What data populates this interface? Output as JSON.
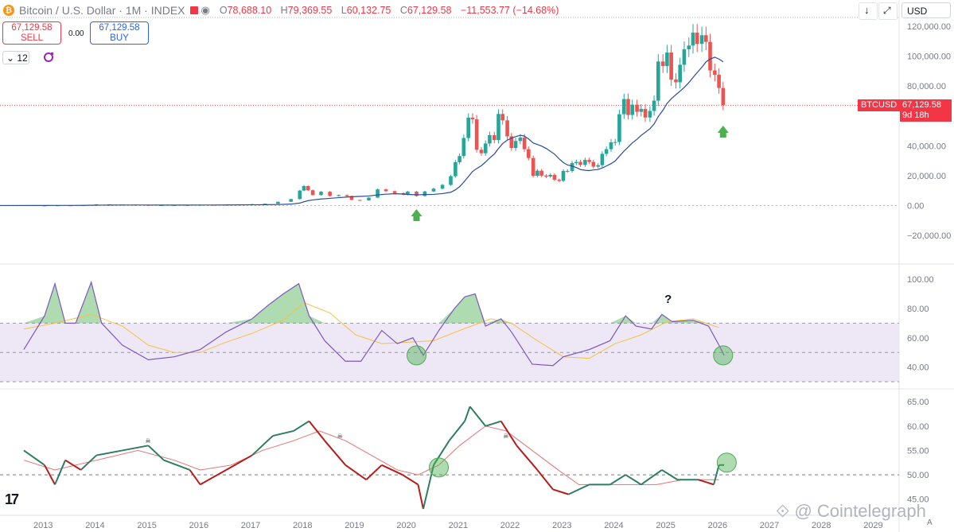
{
  "header": {
    "symbol": "Bitcoin / U.S. Dollar · 1M · INDEX",
    "open_label": "O",
    "open": "78,688.10",
    "high_label": "H",
    "high": "79,369.55",
    "low_label": "L",
    "low": "60,132.75",
    "close_label": "C",
    "close": "67,129.58",
    "change": "−11,553.77 (−14.68%)"
  },
  "trade": {
    "sell_price": "67,129.58",
    "sell_label": "SELL",
    "spread": "0.00",
    "buy_price": "67,129.58",
    "buy_label": "BUY"
  },
  "interval_value": "12",
  "currency": "USD",
  "last_price": {
    "ticker": "BTCUSD",
    "price": "67,129.58",
    "countdown": "9d 18h"
  },
  "watermark": "Cointelegraph",
  "tv_logo": "17",
  "auto_label": "A",
  "colors": {
    "up": "#26a69a",
    "down": "#ef5350",
    "ma": "#2a4b9b",
    "rsi": "#7e57c2",
    "rsi_ma": "#f5c243",
    "osc": "#2e7d63",
    "osc_sig": "#e57373",
    "arrow": "#4caf50",
    "bands": "#ede7f6"
  },
  "chart_data": [
    {
      "type": "candlestick",
      "x_labels": [
        "2013",
        "2014",
        "2015",
        "2016",
        "2017",
        "2018",
        "2019",
        "2020",
        "2021",
        "2022",
        "2023",
        "2024",
        "2025",
        "2026",
        "2027",
        "2028",
        "2029"
      ],
      "y_ticks": [
        "120,000.00",
        "100,000.00",
        "80,000.00",
        "40,000.00",
        "20,000.00",
        "0.00",
        "−20,000.00"
      ],
      "ylim": [
        -20000,
        120000
      ],
      "candles": [
        [
          2013.0,
          10
        ],
        [
          2013.25,
          100
        ],
        [
          2013.5,
          90
        ],
        [
          2013.75,
          200
        ],
        [
          2014.0,
          800
        ],
        [
          2014.25,
          450
        ],
        [
          2014.5,
          600
        ],
        [
          2014.75,
          380
        ],
        [
          2015.0,
          220
        ],
        [
          2015.25,
          240
        ],
        [
          2015.5,
          280
        ],
        [
          2015.75,
          310
        ],
        [
          2016.0,
          430
        ],
        [
          2016.25,
          420
        ],
        [
          2016.5,
          650
        ],
        [
          2016.75,
          700
        ],
        [
          2017.0,
          960
        ],
        [
          2017.25,
          1200
        ],
        [
          2017.5,
          2500
        ],
        [
          2017.75,
          4300
        ],
        [
          2017.92,
          10000
        ],
        [
          2018.0,
          13000
        ],
        [
          2018.08,
          10200
        ],
        [
          2018.17,
          7000
        ],
        [
          2018.33,
          9200
        ],
        [
          2018.5,
          6400
        ],
        [
          2018.67,
          7000
        ],
        [
          2018.83,
          6300
        ],
        [
          2018.92,
          3700
        ],
        [
          2019.08,
          3400
        ],
        [
          2019.25,
          5300
        ],
        [
          2019.42,
          10800
        ],
        [
          2019.58,
          9600
        ],
        [
          2019.75,
          8300
        ],
        [
          2019.92,
          7200
        ],
        [
          2020.0,
          9300
        ],
        [
          2020.17,
          6400
        ],
        [
          2020.33,
          9400
        ],
        [
          2020.5,
          11300
        ],
        [
          2020.67,
          13800
        ],
        [
          2020.83,
          19600
        ],
        [
          2020.92,
          29000
        ],
        [
          2021.0,
          33100
        ],
        [
          2021.08,
          45200
        ],
        [
          2021.17,
          58800
        ],
        [
          2021.25,
          57700
        ],
        [
          2021.33,
          37300
        ],
        [
          2021.42,
          35000
        ],
        [
          2021.5,
          41500
        ],
        [
          2021.58,
          47100
        ],
        [
          2021.67,
          43800
        ],
        [
          2021.75,
          61300
        ],
        [
          2021.83,
          57000
        ],
        [
          2021.92,
          46300
        ],
        [
          2022.0,
          38500
        ],
        [
          2022.08,
          43200
        ],
        [
          2022.17,
          45500
        ],
        [
          2022.25,
          37700
        ],
        [
          2022.33,
          31800
        ],
        [
          2022.42,
          19900
        ],
        [
          2022.5,
          23300
        ],
        [
          2022.58,
          20000
        ],
        [
          2022.67,
          19400
        ],
        [
          2022.75,
          20500
        ],
        [
          2022.83,
          17200
        ],
        [
          2022.92,
          16500
        ],
        [
          2023.0,
          23100
        ],
        [
          2023.08,
          23100
        ],
        [
          2023.17,
          28400
        ],
        [
          2023.25,
          29200
        ],
        [
          2023.33,
          27200
        ],
        [
          2023.42,
          30500
        ],
        [
          2023.5,
          29200
        ],
        [
          2023.58,
          26000
        ],
        [
          2023.67,
          27000
        ],
        [
          2023.75,
          34600
        ],
        [
          2023.83,
          37700
        ],
        [
          2023.92,
          42300
        ],
        [
          2024.0,
          42500
        ],
        [
          2024.08,
          61100
        ],
        [
          2024.17,
          71300
        ],
        [
          2024.25,
          60600
        ],
        [
          2024.33,
          67500
        ],
        [
          2024.42,
          62700
        ],
        [
          2024.5,
          64600
        ],
        [
          2024.58,
          58900
        ],
        [
          2024.67,
          63300
        ],
        [
          2024.75,
          70200
        ],
        [
          2024.83,
          96400
        ],
        [
          2024.92,
          93400
        ],
        [
          2025.0,
          102400
        ],
        [
          2025.08,
          84300
        ],
        [
          2025.17,
          82500
        ],
        [
          2025.25,
          94200
        ],
        [
          2025.33,
          104600
        ],
        [
          2025.42,
          107100
        ],
        [
          2025.5,
          115700
        ],
        [
          2025.58,
          108200
        ],
        [
          2025.67,
          114000
        ],
        [
          2025.75,
          109500
        ],
        [
          2025.83,
          90400
        ],
        [
          2025.92,
          87500
        ],
        [
          2026.0,
          78700
        ],
        [
          2026.08,
          67100
        ]
      ]
    },
    {
      "type": "line",
      "y_ticks": [
        "100.00",
        "80.00",
        "60.00",
        "40.00"
      ],
      "ylim": [
        30,
        105
      ],
      "bands": [
        30,
        70
      ],
      "midline": 50,
      "annotation": "?",
      "rsi": [
        [
          2012.6,
          52
        ],
        [
          2013.0,
          75
        ],
        [
          2013.2,
          97
        ],
        [
          2013.4,
          70
        ],
        [
          2013.6,
          70
        ],
        [
          2013.9,
          98
        ],
        [
          2014.1,
          70
        ],
        [
          2014.5,
          55
        ],
        [
          2015.0,
          45
        ],
        [
          2015.5,
          47
        ],
        [
          2016.0,
          52
        ],
        [
          2016.5,
          64
        ],
        [
          2017.0,
          73
        ],
        [
          2017.3,
          82
        ],
        [
          2017.6,
          90
        ],
        [
          2017.9,
          97
        ],
        [
          2018.1,
          75
        ],
        [
          2018.4,
          58
        ],
        [
          2018.8,
          44
        ],
        [
          2019.1,
          44
        ],
        [
          2019.5,
          65
        ],
        [
          2019.8,
          56
        ],
        [
          2020.1,
          60
        ],
        [
          2020.3,
          48
        ],
        [
          2020.6,
          65
        ],
        [
          2020.9,
          80
        ],
        [
          2021.1,
          88
        ],
        [
          2021.3,
          90
        ],
        [
          2021.5,
          68
        ],
        [
          2021.8,
          73
        ],
        [
          2022.0,
          64
        ],
        [
          2022.4,
          42
        ],
        [
          2022.8,
          41
        ],
        [
          2023.0,
          47
        ],
        [
          2023.5,
          52
        ],
        [
          2023.9,
          58
        ],
        [
          2024.2,
          75
        ],
        [
          2024.4,
          68
        ],
        [
          2024.7,
          66
        ],
        [
          2024.9,
          76
        ],
        [
          2025.1,
          71
        ],
        [
          2025.5,
          72
        ],
        [
          2025.8,
          68
        ],
        [
          2026.0,
          55
        ],
        [
          2026.1,
          48
        ]
      ],
      "rsi_ma": [
        [
          2012.6,
          66
        ],
        [
          2013.2,
          70
        ],
        [
          2013.9,
          76
        ],
        [
          2014.5,
          68
        ],
        [
          2015.0,
          55
        ],
        [
          2015.5,
          50
        ],
        [
          2016.0,
          50
        ],
        [
          2016.5,
          57
        ],
        [
          2017.0,
          63
        ],
        [
          2017.6,
          72
        ],
        [
          2018.0,
          84
        ],
        [
          2018.5,
          77
        ],
        [
          2019.0,
          62
        ],
        [
          2019.5,
          56
        ],
        [
          2020.0,
          57
        ],
        [
          2020.5,
          58
        ],
        [
          2021.0,
          65
        ],
        [
          2021.6,
          73
        ],
        [
          2022.0,
          70
        ],
        [
          2022.5,
          58
        ],
        [
          2023.0,
          47
        ],
        [
          2023.5,
          46
        ],
        [
          2024.0,
          56
        ],
        [
          2024.5,
          62
        ],
        [
          2025.0,
          71
        ],
        [
          2025.5,
          73
        ],
        [
          2026.0,
          67
        ]
      ]
    },
    {
      "type": "line",
      "y_ticks": [
        "65.00",
        "60.00",
        "55.00",
        "50.00",
        "45.00"
      ],
      "ylim": [
        43,
        66
      ],
      "midline": 50,
      "osc": [
        [
          2012.6,
          55
        ],
        [
          2013.0,
          52
        ],
        [
          2013.2,
          48
        ],
        [
          2013.4,
          53
        ],
        [
          2013.7,
          51
        ],
        [
          2014.0,
          54
        ],
        [
          2014.5,
          55
        ],
        [
          2015.0,
          56
        ],
        [
          2015.3,
          53
        ],
        [
          2015.8,
          51
        ],
        [
          2016.0,
          48
        ],
        [
          2016.5,
          51
        ],
        [
          2017.0,
          54
        ],
        [
          2017.4,
          58
        ],
        [
          2017.8,
          59
        ],
        [
          2018.1,
          61
        ],
        [
          2018.4,
          57
        ],
        [
          2018.8,
          52
        ],
        [
          2019.2,
          49
        ],
        [
          2019.5,
          52
        ],
        [
          2019.9,
          50
        ],
        [
          2020.2,
          48
        ],
        [
          2020.3,
          43
        ],
        [
          2020.5,
          52
        ],
        [
          2020.8,
          57
        ],
        [
          2021.1,
          61
        ],
        [
          2021.2,
          64
        ],
        [
          2021.5,
          60
        ],
        [
          2021.8,
          61
        ],
        [
          2022.1,
          56
        ],
        [
          2022.5,
          51
        ],
        [
          2022.8,
          47
        ],
        [
          2023.1,
          46
        ],
        [
          2023.5,
          48
        ],
        [
          2023.9,
          48
        ],
        [
          2024.2,
          50
        ],
        [
          2024.5,
          48
        ],
        [
          2024.9,
          51
        ],
        [
          2025.2,
          49
        ],
        [
          2025.6,
          49
        ],
        [
          2025.9,
          48
        ],
        [
          2026.0,
          52
        ],
        [
          2026.1,
          52
        ]
      ],
      "signal": [
        [
          2012.6,
          53
        ],
        [
          2013.2,
          51
        ],
        [
          2014.0,
          53
        ],
        [
          2014.8,
          55
        ],
        [
          2015.5,
          53
        ],
        [
          2016.0,
          51
        ],
        [
          2016.6,
          52
        ],
        [
          2017.2,
          55
        ],
        [
          2017.8,
          57
        ],
        [
          2018.3,
          59
        ],
        [
          2018.8,
          57
        ],
        [
          2019.3,
          54
        ],
        [
          2019.8,
          51
        ],
        [
          2020.2,
          50
        ],
        [
          2020.6,
          52
        ],
        [
          2021.0,
          56
        ],
        [
          2021.5,
          60
        ],
        [
          2021.9,
          59
        ],
        [
          2022.4,
          55
        ],
        [
          2022.9,
          51
        ],
        [
          2023.3,
          48
        ],
        [
          2023.8,
          48
        ],
        [
          2024.3,
          48
        ],
        [
          2024.8,
          48
        ],
        [
          2025.3,
          49
        ],
        [
          2025.8,
          49
        ],
        [
          2026.0,
          49
        ]
      ]
    }
  ]
}
